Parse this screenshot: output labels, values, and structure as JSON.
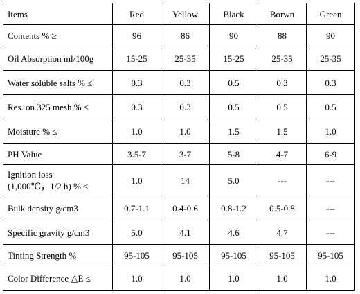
{
  "table": {
    "headers": [
      "Items",
      "Red",
      "Yellow",
      "Black",
      "Borwn",
      "Green"
    ],
    "rows": [
      {
        "label": [
          "Contents % ≥"
        ],
        "values": [
          "96",
          "86",
          "90",
          "88",
          "90"
        ]
      },
      {
        "label": [
          "Oil Absorption ml/100g"
        ],
        "values": [
          "15-25",
          "25-35",
          "15-25",
          "25-35",
          "25-35"
        ]
      },
      {
        "label": [
          "Water soluble salts % ≤"
        ],
        "values": [
          "0.3",
          "0.3",
          "0.5",
          "0.3",
          "0.3"
        ]
      },
      {
        "label": [
          "Res. on 325 mesh % ≤"
        ],
        "values": [
          "0.3",
          "0.3",
          "0.5",
          "0.5",
          "0.5"
        ]
      },
      {
        "label": [
          "Moisture % ≤"
        ],
        "values": [
          "1.0",
          "1.0",
          "1.5",
          "1.5",
          "1.0"
        ]
      },
      {
        "label": [
          "PH Value"
        ],
        "values": [
          "3.5-7",
          "3-7",
          "5-8",
          "4-7",
          "6-9"
        ]
      },
      {
        "label": [
          "Ignition loss",
          "(1,000℃，1/2 h) % ≤"
        ],
        "values": [
          "1.0",
          "14",
          "5.0",
          "---",
          "---"
        ]
      },
      {
        "label": [
          "Bulk density g/cm3"
        ],
        "values": [
          "0.7-1.1",
          "0.4-0.6",
          "0.8-1.2",
          "0.5-0.8",
          "---"
        ]
      },
      {
        "label": [
          "Specific gravity g/cm3"
        ],
        "values": [
          "5.0",
          "4.1",
          "4.6",
          "4.7",
          "---"
        ]
      },
      {
        "label": [
          "Tinting Strength %"
        ],
        "values": [
          "95-105",
          "95-105",
          "95-105",
          "95-105",
          "95-105"
        ]
      },
      {
        "label": [
          "Color Difference △E ≤"
        ],
        "values": [
          "1.0",
          "1.0",
          "1.0",
          "1.0",
          "1.0"
        ]
      }
    ]
  }
}
